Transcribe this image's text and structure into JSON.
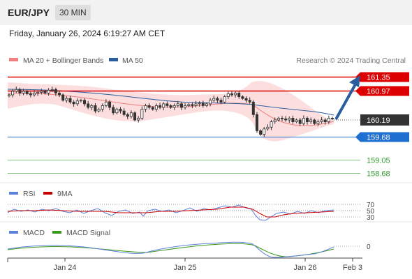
{
  "header": {
    "symbol": "EUR/JPY",
    "timeframe": "30 MIN"
  },
  "datetime": "Friday, January 26, 2024 6:19:27 AM CET",
  "legend": {
    "ma20_label": "MA 20 + Bollinger Bands",
    "ma50_label": "MA 50",
    "copyright": "Research © 2024 Trading Central",
    "ma20_color": "#f08080",
    "ma50_color": "#2a5d9e"
  },
  "rsi_legend": {
    "rsi_label": "RSI",
    "ma_label": "9MA",
    "rsi_color": "#5b7fdc",
    "ma_color": "#cc0000"
  },
  "macd_legend": {
    "macd_label": "MACD",
    "signal_label": "MACD Signal",
    "macd_color": "#5b7fdc",
    "signal_color": "#3a9a1a"
  },
  "chart_data": [
    {
      "type": "candlestick",
      "title": "EUR/JPY",
      "ylim": [
        158.4,
        161.55
      ],
      "x_ticks": [
        "Jan 24",
        "Jan 25",
        "Jan 26",
        "Feb 3"
      ],
      "current_price": "160.19",
      "levels": [
        {
          "value": 161.35,
          "label": "161.35",
          "kind": "resistance",
          "color": "#dd0000"
        },
        {
          "value": 160.97,
          "label": "160.97",
          "kind": "resistance",
          "color": "#dd0000"
        },
        {
          "value": 159.68,
          "label": "159.68",
          "kind": "support",
          "color": "#1f6fd1"
        },
        {
          "value": 159.05,
          "label": "159.05",
          "kind": "target",
          "color": "#2e9a2e"
        },
        {
          "value": 158.68,
          "label": "158.68",
          "kind": "target",
          "color": "#2e9a2e"
        }
      ],
      "forecast_arrow": {
        "from": 160.19,
        "to": 161.25,
        "color": "#2a5d9e"
      },
      "close_series": [
        160.85,
        160.95,
        161.0,
        160.9,
        160.95,
        160.88,
        160.85,
        160.9,
        160.92,
        160.95,
        160.9,
        160.98,
        161.0,
        160.9,
        160.85,
        160.7,
        160.75,
        160.65,
        160.6,
        160.68,
        160.7,
        160.6,
        160.5,
        160.55,
        160.4,
        160.45,
        160.55,
        160.65,
        160.5,
        160.35,
        160.45,
        160.4,
        160.3,
        160.25,
        160.35,
        160.15,
        160.2,
        160.45,
        160.55,
        160.5,
        160.45,
        160.55,
        160.5,
        160.6,
        160.55,
        160.5,
        160.55,
        160.6,
        160.5,
        160.55,
        160.58,
        160.55,
        160.6,
        160.62,
        160.55,
        160.6,
        160.7,
        160.75,
        160.7,
        160.65,
        160.8,
        160.88,
        160.85,
        160.9,
        160.8,
        160.75,
        160.7,
        160.65,
        160.3,
        159.85,
        159.75,
        159.9,
        159.95,
        160.1,
        160.15,
        160.2,
        160.18,
        160.15,
        160.2,
        160.1,
        160.15,
        160.05,
        160.2,
        160.1,
        160.15,
        160.05,
        160.1,
        160.15,
        160.1,
        160.2,
        160.19
      ]
    },
    {
      "type": "line",
      "title": "RSI",
      "levels": [
        70,
        50,
        30
      ],
      "level_labels": [
        "70",
        "50",
        "30"
      ]
    },
    {
      "type": "line",
      "title": "MACD",
      "zero_label": "0"
    }
  ]
}
